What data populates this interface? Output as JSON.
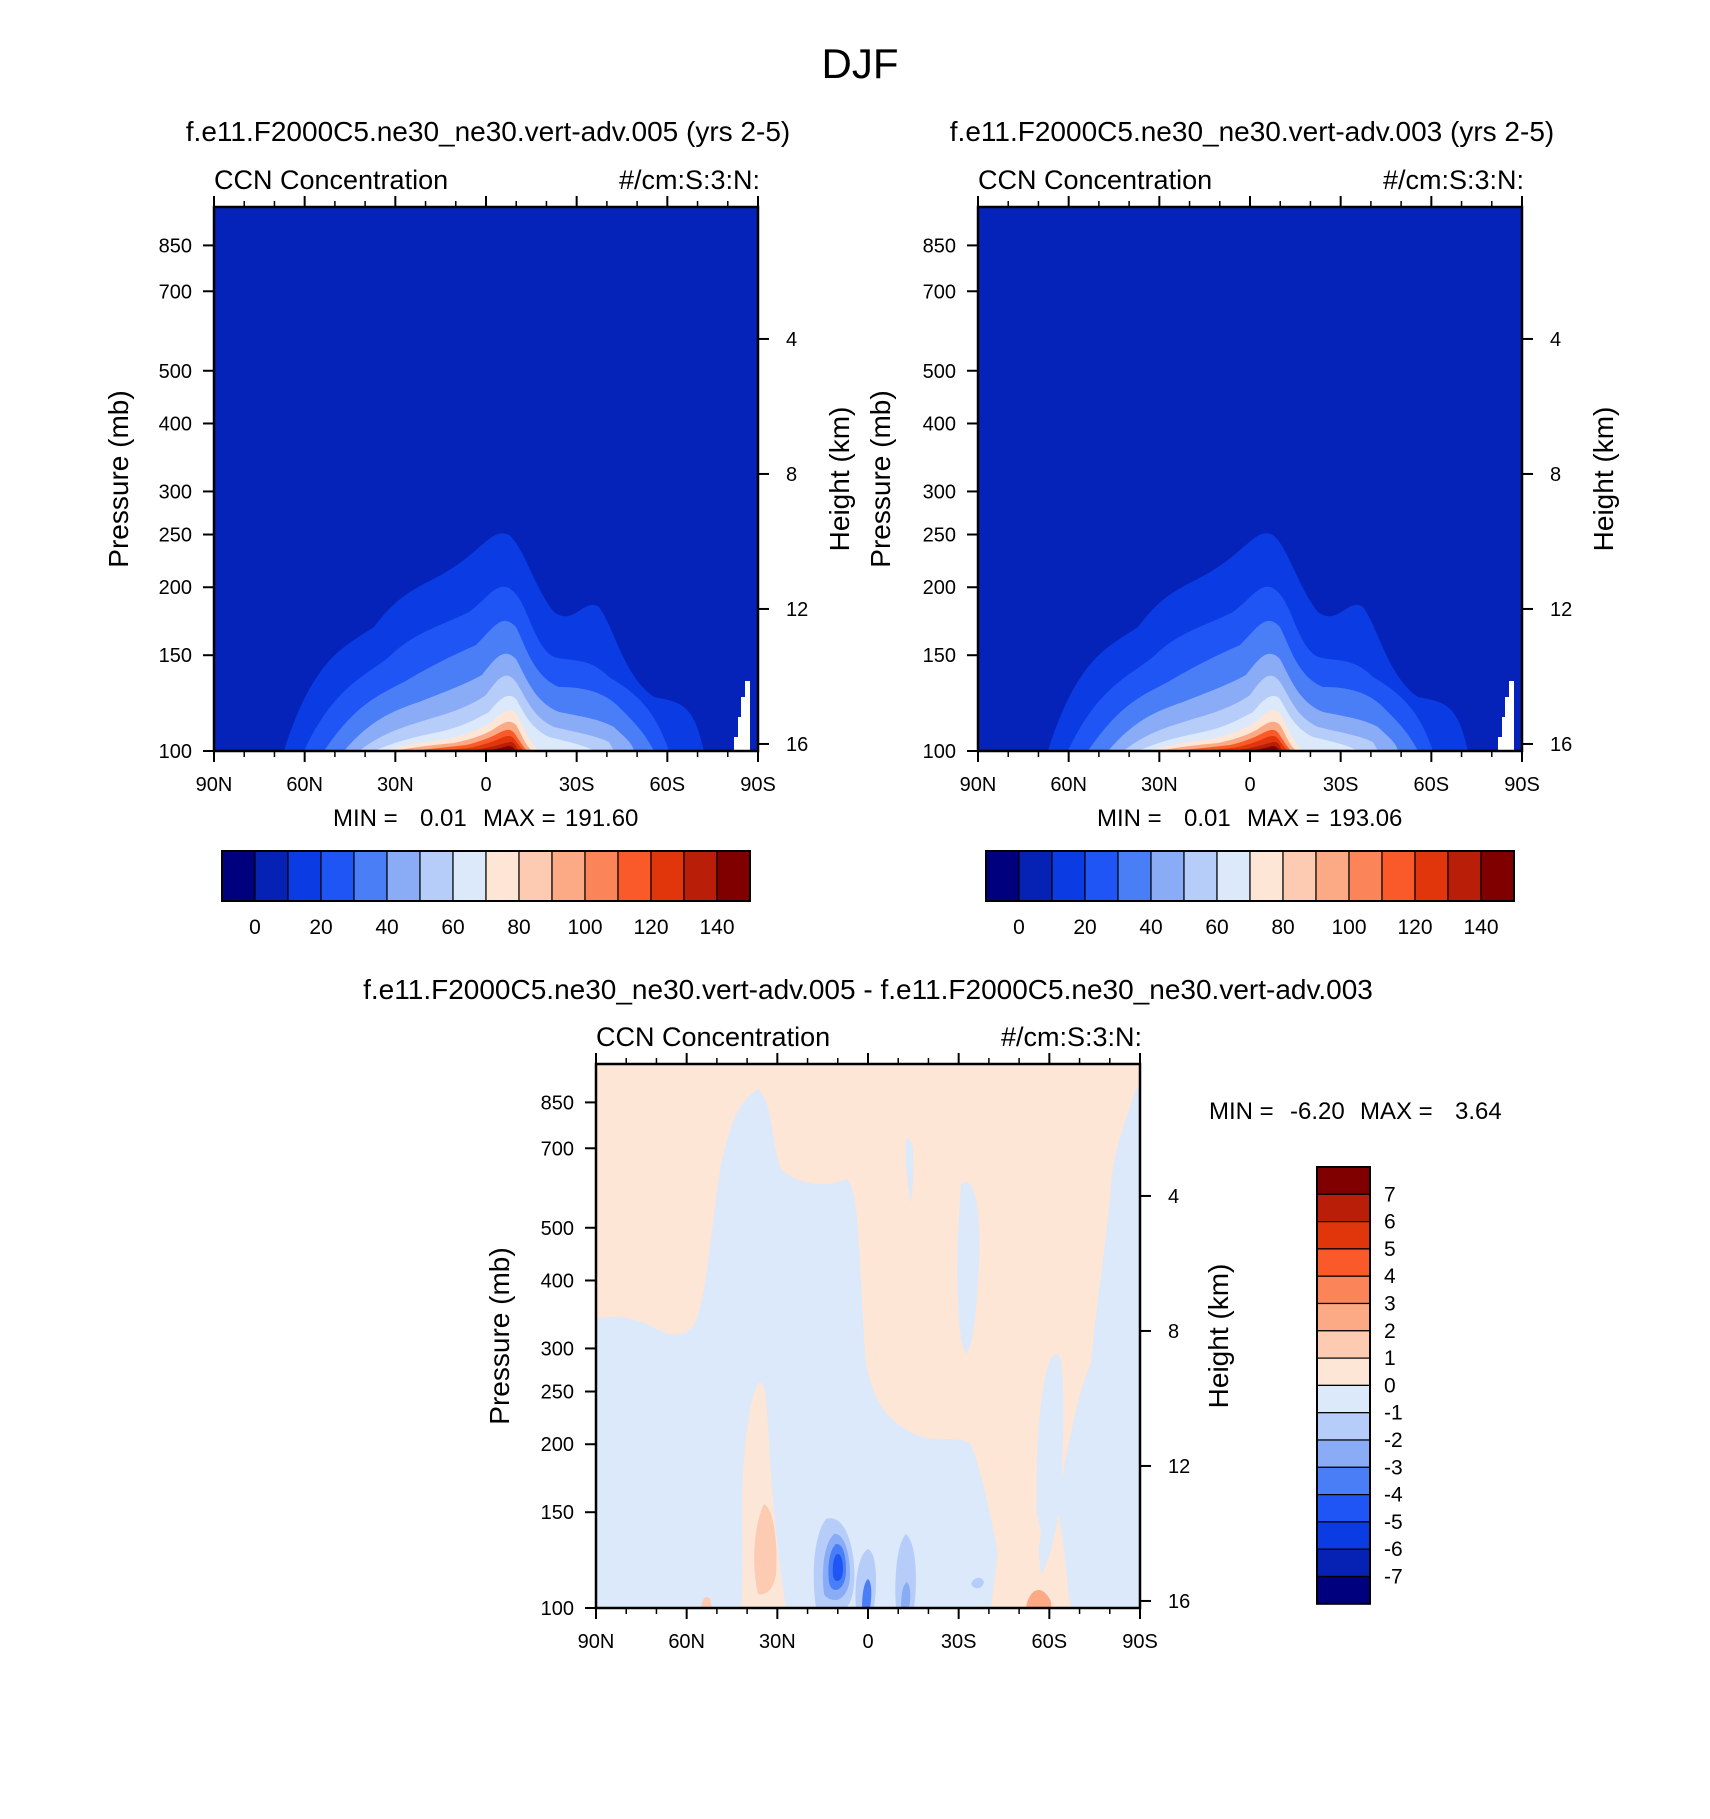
{
  "page_title": "DJF",
  "colors": {
    "background_field": "#0523b8",
    "diff_positive": "#fde6d6",
    "diff_negative": "#d6e6fb"
  },
  "panels": [
    {
      "id": "panel-005",
      "case_title": "f.e11.F2000C5.ne30_ne30.vert-adv.005 (yrs 2-5)",
      "left_string": "CCN Concentration",
      "right_string": "#/cm:S:3:N:",
      "ylabel": "Pressure (mb)",
      "ylabel_right": "Height (km)",
      "minmax": {
        "min_label": "MIN =",
        "min": "0.01",
        "max_label": "MAX =",
        "max": "191.60"
      }
    },
    {
      "id": "panel-003",
      "case_title": "f.e11.F2000C5.ne30_ne30.vert-adv.003 (yrs 2-5)",
      "left_string": "CCN Concentration",
      "right_string": "#/cm:S:3:N:",
      "ylabel": "Pressure (mb)",
      "ylabel_right": "Height (km)",
      "minmax": {
        "min_label": "MIN =",
        "min": "0.01",
        "max_label": "MAX =",
        "max": "193.06"
      }
    },
    {
      "id": "panel-diff",
      "case_title": "f.e11.F2000C5.ne30_ne30.vert-adv.005 - f.e11.F2000C5.ne30_ne30.vert-adv.003",
      "left_string": "CCN Concentration",
      "right_string": "#/cm:S:3:N:",
      "ylabel": "Pressure (mb)",
      "ylabel_right": "Height (km)",
      "minmax": {
        "min_label": "MIN =",
        "min": "-6.20",
        "max_label": "MAX =",
        "max": "3.64"
      }
    }
  ],
  "chart_data": [
    {
      "type": "heatmap",
      "title": "f.e11.F2000C5.ne30_ne30.vert-adv.005 (yrs 2-5)",
      "variable": "CCN Concentration",
      "units": "#/cm:S:3:N:",
      "xlabel": "",
      "ylabel": "Pressure (mb)",
      "ylabel_right": "Height (km)",
      "x_ticks": [
        "90N",
        "60N",
        "30N",
        "0",
        "30S",
        "60S",
        "90S"
      ],
      "y_ticks": [
        100,
        150,
        200,
        250,
        300,
        400,
        500,
        700,
        850
      ],
      "y_right_ticks": [
        16,
        12,
        8,
        4
      ],
      "ylim": [
        1000,
        100
      ],
      "min": 0.01,
      "max": 191.6,
      "colorbar_levels": [
        0,
        10,
        20,
        30,
        40,
        50,
        60,
        70,
        80,
        90,
        100,
        110,
        120,
        130,
        140
      ],
      "colorbar_tick_labels": [
        "0",
        "20",
        "40",
        "60",
        "80",
        "100",
        "120",
        "140"
      ]
    },
    {
      "type": "heatmap",
      "title": "f.e11.F2000C5.ne30_ne30.vert-adv.003 (yrs 2-5)",
      "variable": "CCN Concentration",
      "units": "#/cm:S:3:N:",
      "xlabel": "",
      "ylabel": "Pressure (mb)",
      "ylabel_right": "Height (km)",
      "x_ticks": [
        "90N",
        "60N",
        "30N",
        "0",
        "30S",
        "60S",
        "90S"
      ],
      "y_ticks": [
        100,
        150,
        200,
        250,
        300,
        400,
        500,
        700,
        850
      ],
      "y_right_ticks": [
        16,
        12,
        8,
        4
      ],
      "ylim": [
        1000,
        100
      ],
      "min": 0.01,
      "max": 193.06,
      "colorbar_levels": [
        0,
        10,
        20,
        30,
        40,
        50,
        60,
        70,
        80,
        90,
        100,
        110,
        120,
        130,
        140
      ],
      "colorbar_tick_labels": [
        "0",
        "20",
        "40",
        "60",
        "80",
        "100",
        "120",
        "140"
      ]
    },
    {
      "type": "heatmap",
      "title": "f.e11.F2000C5.ne30_ne30.vert-adv.005 - f.e11.F2000C5.ne30_ne30.vert-adv.003",
      "variable": "CCN Concentration",
      "units": "#/cm:S:3:N:",
      "xlabel": "",
      "ylabel": "Pressure (mb)",
      "ylabel_right": "Height (km)",
      "x_ticks": [
        "90N",
        "60N",
        "30N",
        "0",
        "30S",
        "60S",
        "90S"
      ],
      "y_ticks": [
        100,
        150,
        200,
        250,
        300,
        400,
        500,
        700,
        850
      ],
      "y_right_ticks": [
        16,
        12,
        8,
        4
      ],
      "ylim": [
        1000,
        100
      ],
      "min": -6.2,
      "max": 3.64,
      "colorbar_levels": [
        7,
        6,
        5,
        4,
        3,
        2,
        1,
        0,
        -1,
        -2,
        -3,
        -4,
        -5,
        -6,
        -7
      ],
      "colorbar_tick_labels": [
        "7",
        "6",
        "5",
        "4",
        "3",
        "2",
        "1",
        "0",
        "-1",
        "-2",
        "-3",
        "-4",
        "-5",
        "-6",
        "-7"
      ]
    }
  ],
  "colorbar_colors": [
    "#00007f",
    "#0522b5",
    "#0a3be3",
    "#1f55f5",
    "#4a7ef7",
    "#8aacf7",
    "#b7cdf9",
    "#dbe9fb",
    "#fde6d6",
    "#fccbb2",
    "#fcaa85",
    "#fb8559",
    "#fa5a2a",
    "#e1350c",
    "#b81e08",
    "#800000"
  ],
  "diff_colorbar_colors": [
    "#800000",
    "#b81e08",
    "#e1350c",
    "#fa5a2a",
    "#fb8559",
    "#fcaa85",
    "#fccbb2",
    "#fde6d6",
    "#dbe9fb",
    "#b7cdf9",
    "#8aacf7",
    "#4a7ef7",
    "#1f55f5",
    "#0a3be3",
    "#0522b5",
    "#00007f"
  ]
}
